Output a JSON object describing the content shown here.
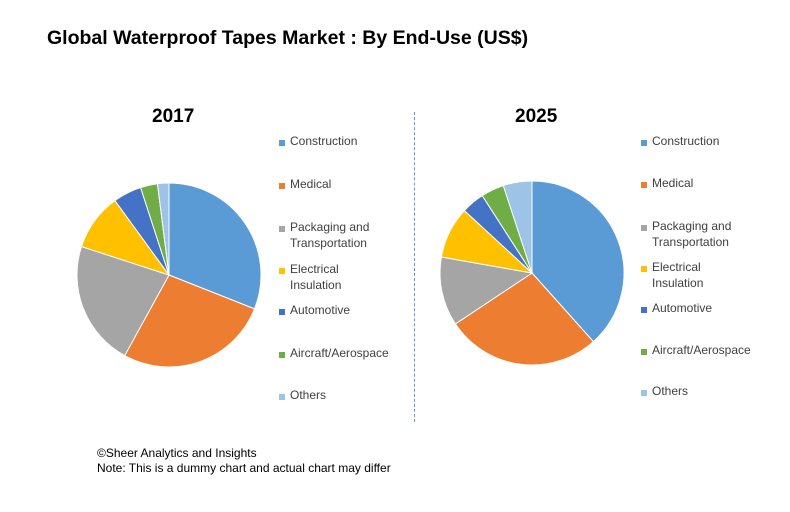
{
  "title": "Global Waterproof Tapes Market : By End-Use (US$)",
  "footer": {
    "line1": "©Sheer Analytics and Insights",
    "line2": "Note: This is a dummy chart and actual chart may differ"
  },
  "colors": [
    "#5b9bd5",
    "#ed7d31",
    "#a5a5a5",
    "#ffc000",
    "#4472c4",
    "#70ad47",
    "#9dc3e6"
  ],
  "chart_data": [
    {
      "type": "pie",
      "title": "2017",
      "categories": [
        "Construction",
        "Medical",
        "Packaging and Transportation",
        "Electrical Insulation",
        "Automotive",
        "Aircraft/Aerospace",
        "Others"
      ],
      "values": [
        31,
        27,
        22,
        10,
        5,
        3,
        2
      ],
      "legend_position": "right"
    },
    {
      "type": "pie",
      "title": "2025",
      "categories": [
        "Construction",
        "Medical",
        "Packaging and Transportation",
        "Electrical Insulation",
        "Automotive",
        "Aircraft/Aerospace",
        "Others"
      ],
      "values": [
        38,
        27,
        12,
        9,
        4,
        4,
        5
      ],
      "legend_position": "right"
    }
  ]
}
